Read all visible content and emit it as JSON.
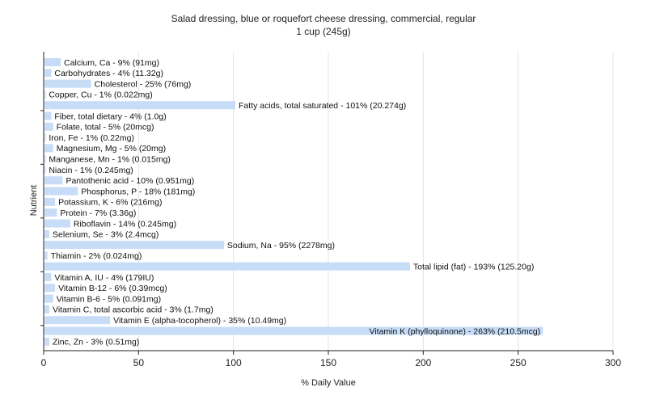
{
  "chart_data": {
    "type": "bar",
    "orientation": "horizontal",
    "title": "Salad dressing, blue or roquefort cheese dressing, commercial, regular",
    "subtitle": "1 cup (245g)",
    "xlabel": "% Daily Value",
    "ylabel": "Nutrient",
    "xlim": [
      0,
      300
    ],
    "xticks": [
      0,
      50,
      100,
      150,
      200,
      250,
      300
    ],
    "grid": true,
    "bar_color": "#c6dcf7",
    "categories": [
      "Calcium, Ca",
      "Carbohydrates",
      "Cholesterol",
      "Copper, Cu",
      "Fatty acids, total saturated",
      "Fiber, total dietary",
      "Folate, total",
      "Iron, Fe",
      "Magnesium, Mg",
      "Manganese, Mn",
      "Niacin",
      "Pantothenic acid",
      "Phosphorus, P",
      "Potassium, K",
      "Protein",
      "Riboflavin",
      "Selenium, Se",
      "Sodium, Na",
      "Thiamin",
      "Total lipid (fat)",
      "Vitamin A, IU",
      "Vitamin B-12",
      "Vitamin B-6",
      "Vitamin C, total ascorbic acid",
      "Vitamin E (alpha-tocopherol)",
      "Vitamin K (phylloquinone)",
      "Zinc, Zn"
    ],
    "values": [
      9,
      4,
      25,
      1,
      101,
      4,
      5,
      1,
      5,
      1,
      1,
      10,
      18,
      6,
      7,
      14,
      3,
      95,
      2,
      193,
      4,
      6,
      5,
      3,
      35,
      263,
      3
    ],
    "labels": [
      "Calcium, Ca - 9% (91mg)",
      "Carbohydrates - 4% (11.32g)",
      "Cholesterol - 25% (76mg)",
      "Copper, Cu - 1% (0.022mg)",
      "Fatty acids, total saturated - 101% (20.274g)",
      "Fiber, total dietary - 4% (1.0g)",
      "Folate, total - 5% (20mcg)",
      "Iron, Fe - 1% (0.22mg)",
      "Magnesium, Mg - 5% (20mg)",
      "Manganese, Mn - 1% (0.015mg)",
      "Niacin - 1% (0.245mg)",
      "Pantothenic acid - 10% (0.951mg)",
      "Phosphorus, P - 18% (181mg)",
      "Potassium, K - 6% (216mg)",
      "Protein - 7% (3.36g)",
      "Riboflavin - 14% (0.245mg)",
      "Selenium, Se - 3% (2.4mcg)",
      "Sodium, Na - 95% (2278mg)",
      "Thiamin - 2% (0.024mg)",
      "Total lipid (fat) - 193% (125.20g)",
      "Vitamin A, IU - 4% (179IU)",
      "Vitamin B-12 - 6% (0.39mcg)",
      "Vitamin B-6 - 5% (0.091mg)",
      "Vitamin C, total ascorbic acid - 3% (1.7mg)",
      "Vitamin E (alpha-tocopherol) - 35% (10.49mg)",
      "Vitamin K (phylloquinone) - 263% (210.5mcg)",
      "Zinc, Zn - 3% (0.51mg)"
    ]
  }
}
